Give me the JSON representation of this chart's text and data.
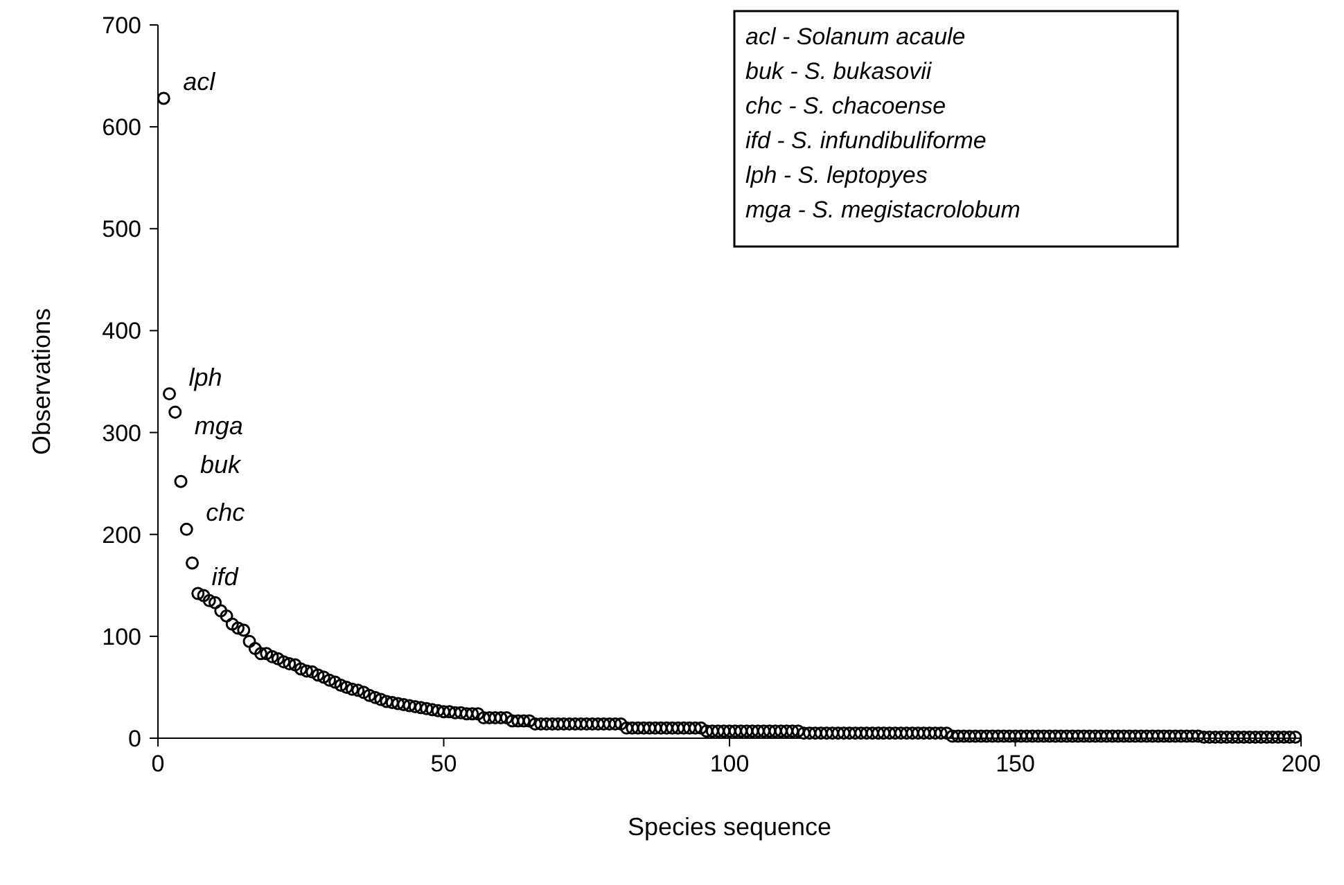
{
  "chart_data": {
    "type": "scatter",
    "xlabel": "Species sequence",
    "ylabel": "Observations",
    "x": [
      1,
      2,
      3,
      4,
      5,
      6,
      7,
      8,
      9,
      10,
      11,
      12,
      13,
      14,
      15,
      16,
      17,
      18,
      19,
      20,
      21,
      22,
      23,
      24,
      25,
      26,
      27,
      28,
      29,
      30,
      31,
      32,
      33,
      34,
      35,
      36,
      37,
      38,
      39,
      40,
      41,
      42,
      43,
      44,
      45,
      46,
      47,
      48,
      49,
      50,
      51,
      52,
      53,
      54,
      55,
      56,
      57,
      58,
      59,
      60,
      61,
      62,
      63,
      64,
      65,
      66,
      67,
      68,
      69,
      70,
      71,
      72,
      73,
      74,
      75,
      76,
      77,
      78,
      79,
      80,
      81,
      82,
      83,
      84,
      85,
      86,
      87,
      88,
      89,
      90,
      91,
      92,
      93,
      94,
      95,
      96,
      97,
      98,
      99,
      100,
      101,
      102,
      103,
      104,
      105,
      106,
      107,
      108,
      109,
      110,
      111,
      112,
      113,
      114,
      115,
      116,
      117,
      118,
      119,
      120,
      121,
      122,
      123,
      124,
      125,
      126,
      127,
      128,
      129,
      130,
      131,
      132,
      133,
      134,
      135,
      136,
      137,
      138,
      139,
      140,
      141,
      142,
      143,
      144,
      145,
      146,
      147,
      148,
      149,
      150,
      151,
      152,
      153,
      154,
      155,
      156,
      157,
      158,
      159,
      160,
      161,
      162,
      163,
      164,
      165,
      166,
      167,
      168,
      169,
      170,
      171,
      172,
      173,
      174,
      175,
      176,
      177,
      178,
      179,
      180,
      181,
      182,
      183,
      184,
      185,
      186,
      187,
      188,
      189,
      190,
      191,
      192,
      193,
      194,
      195,
      196,
      197,
      198,
      199
    ],
    "series": [
      {
        "color": "#000000",
        "values": [
          628,
          338,
          320,
          252,
          205,
          172,
          142,
          140,
          135,
          133,
          125,
          120,
          112,
          108,
          106,
          95,
          88,
          83,
          83,
          80,
          78,
          75,
          73,
          72,
          68,
          66,
          65,
          62,
          60,
          57,
          55,
          52,
          50,
          48,
          47,
          45,
          42,
          40,
          38,
          36,
          35,
          34,
          33,
          32,
          31,
          30,
          29,
          28,
          27,
          26,
          26,
          25,
          25,
          24,
          24,
          24,
          20,
          20,
          20,
          20,
          20,
          17,
          17,
          17,
          17,
          14,
          14,
          14,
          14,
          14,
          14,
          14,
          14,
          14,
          14,
          14,
          14,
          14,
          14,
          14,
          14,
          10,
          10,
          10,
          10,
          10,
          10,
          10,
          10,
          10,
          10,
          10,
          10,
          10,
          10,
          7,
          7,
          7,
          7,
          7,
          7,
          7,
          7,
          7,
          7,
          7,
          7,
          7,
          7,
          7,
          7,
          7,
          5,
          5,
          5,
          5,
          5,
          5,
          5,
          5,
          5,
          5,
          5,
          5,
          5,
          5,
          5,
          5,
          5,
          5,
          5,
          5,
          5,
          5,
          5,
          5,
          5,
          5,
          2,
          2,
          2,
          2,
          2,
          2,
          2,
          2,
          2,
          2,
          2,
          2,
          2,
          2,
          2,
          2,
          2,
          2,
          2,
          2,
          2,
          2,
          2,
          2,
          2,
          2,
          2,
          2,
          2,
          2,
          2,
          2,
          2,
          2,
          2,
          2,
          2,
          2,
          2,
          2,
          2,
          2,
          2,
          2,
          1,
          1,
          1,
          1,
          1,
          1,
          1,
          1,
          1,
          1,
          1,
          1,
          1,
          1,
          1,
          1,
          1
        ]
      }
    ],
    "marker": "circle",
    "grid": false,
    "xlim": [
      0,
      200
    ],
    "xticks": [
      0,
      50,
      100,
      150,
      200
    ],
    "ylim": [
      0,
      700
    ],
    "yticks": [
      0,
      100,
      200,
      300,
      400,
      500,
      600,
      700
    ],
    "annotations": [
      {
        "text": "acl",
        "x": 1,
        "y": 628
      },
      {
        "text": "lph",
        "x": 2,
        "y": 338
      },
      {
        "text": "mga",
        "x": 3,
        "y": 320
      },
      {
        "text": "buk",
        "x": 4,
        "y": 252
      },
      {
        "text": "chc",
        "x": 5,
        "y": 205
      },
      {
        "text": "ifd",
        "x": 6,
        "y": 172
      },
      "acl - Solanum acaule",
      "buk - S. bukasovii",
      "chc - S. chacoense",
      "ifd - S. infundibuliforme",
      "lph - S. leptopyes",
      "mga - S. megistacrolobum"
    ]
  }
}
